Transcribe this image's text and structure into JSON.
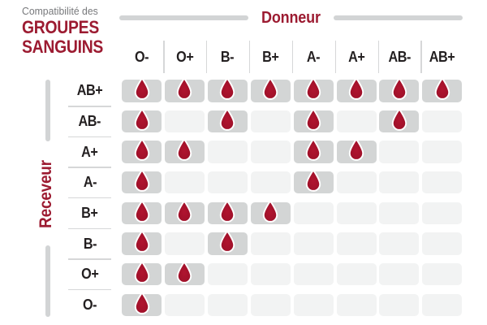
{
  "title": {
    "line1": "Compatibilité des",
    "line2": "GROUPES",
    "line3": "SANGUINS"
  },
  "axis": {
    "donor_label": "Donneur",
    "recipient_label": "Receveur"
  },
  "chart_data": {
    "type": "table",
    "title": "Compatibilité des groupes sanguins",
    "columns_axis_label": "Donneur",
    "rows_axis_label": "Receveur",
    "columns": [
      "O-",
      "O+",
      "B-",
      "B+",
      "A-",
      "A+",
      "AB-",
      "AB+"
    ],
    "rows": [
      "AB+",
      "AB-",
      "A+",
      "A-",
      "B+",
      "B-",
      "O+",
      "O-"
    ],
    "marker": "blood-drop-icon",
    "marker_meaning": "drop = donor compatible with recipient, empty cell = incompatible",
    "matrix": [
      [
        1,
        1,
        1,
        1,
        1,
        1,
        1,
        1
      ],
      [
        1,
        0,
        1,
        0,
        1,
        0,
        1,
        0
      ],
      [
        1,
        1,
        0,
        0,
        1,
        1,
        0,
        0
      ],
      [
        1,
        0,
        0,
        0,
        1,
        0,
        0,
        0
      ],
      [
        1,
        1,
        1,
        1,
        0,
        0,
        0,
        0
      ],
      [
        1,
        0,
        1,
        0,
        0,
        0,
        0,
        0
      ],
      [
        1,
        1,
        0,
        0,
        0,
        0,
        0,
        0
      ],
      [
        1,
        0,
        0,
        0,
        0,
        0,
        0,
        0
      ]
    ]
  },
  "colors": {
    "accent_red": "#9c1b31",
    "drop_red": "#a1112a",
    "drop_red_light": "#b0142f",
    "drop_red_dark": "#8e0e24",
    "cell_compatible": "#d3d5d5",
    "cell_incompatible": "#f2f3f3",
    "bar_gray": "#d2d4d5",
    "divider_gray": "#d6d7d8",
    "header_text": "#231f20",
    "subtitle_gray": "#77787b"
  }
}
